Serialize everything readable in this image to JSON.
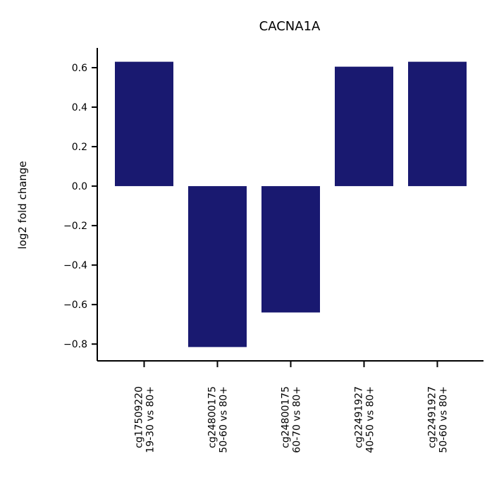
{
  "chart_data": {
    "type": "bar",
    "title": "CACNA1A",
    "xlabel": "",
    "ylabel": "log2 fold change",
    "categories": [
      [
        "cg17509220",
        "19-30 vs 80+"
      ],
      [
        "cg24800175",
        "50-60 vs 80+"
      ],
      [
        "cg24800175",
        "60-70 vs 80+"
      ],
      [
        "cg22491927",
        "40-50 vs 80+"
      ],
      [
        "cg22491927",
        "50-60 vs 80+"
      ]
    ],
    "values": [
      0.63,
      -0.815,
      -0.64,
      0.605,
      0.63
    ],
    "ylim": [
      -0.885,
      0.7
    ],
    "yticks": [
      0.6,
      0.4,
      0.2,
      0.0,
      -0.2,
      -0.4,
      -0.6,
      -0.8
    ],
    "ytick_labels": [
      "0.6",
      "0.4",
      "0.2",
      "0.0",
      "−0.2",
      "−0.4",
      "−0.6",
      "−0.8"
    ],
    "grid": false,
    "legend": "none",
    "bar_color": "#191970"
  }
}
